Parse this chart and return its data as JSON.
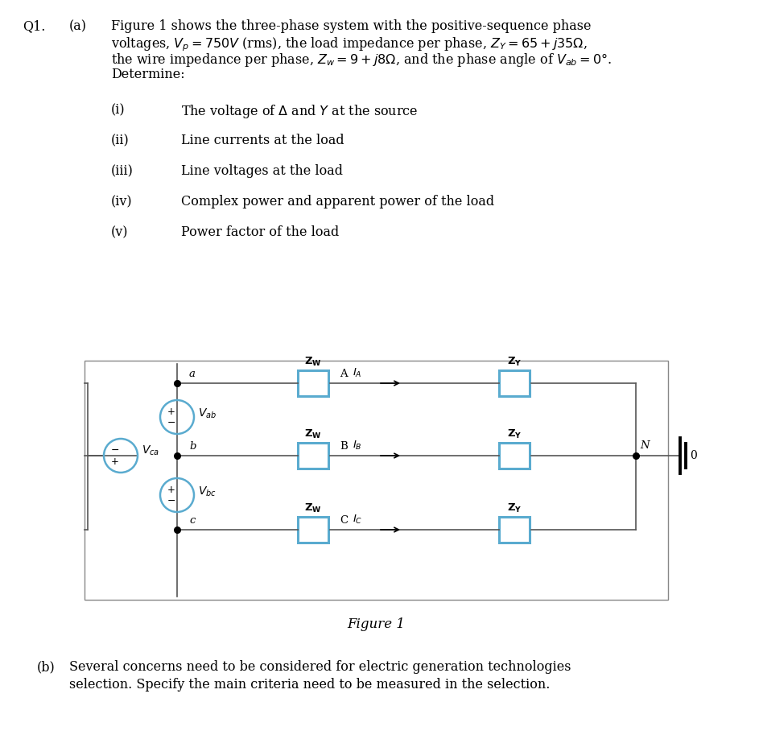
{
  "bg_color": "#ffffff",
  "text_color": "#000000",
  "circuit_color": "#5aabcf",
  "wire_color": "#555555",
  "items": [
    [
      "(i)",
      "The voltage of $\\Delta$ and $Y$ at the source"
    ],
    [
      "(ii)",
      "Line currents at the load"
    ],
    [
      "(iii)",
      "Line voltages at the load"
    ],
    [
      "(iv)",
      "Complex power and apparent power of the load"
    ],
    [
      "(v)",
      "Power factor of the load"
    ]
  ],
  "figure_label": "Figure 1",
  "part_b_text_line1": "Several concerns need to be considered for electric generation technologies",
  "part_b_text_line2": "selection. Specify the main criteria need to be measured in the selection."
}
